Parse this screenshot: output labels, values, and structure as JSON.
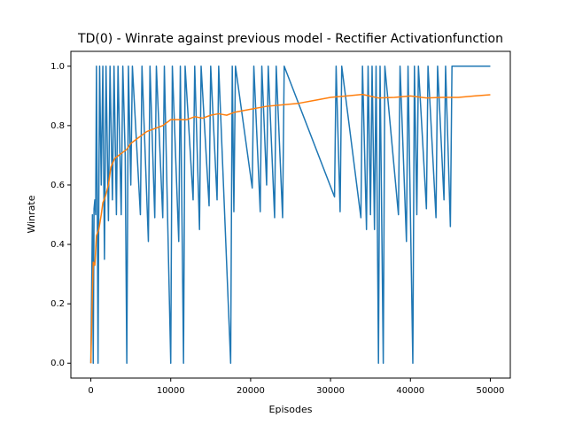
{
  "chart_data": {
    "type": "line",
    "title": "TD(0) - Winrate against previous model - Rectifier Activationfunction",
    "xlabel": "Episodes",
    "ylabel": "Winrate",
    "xlim": [
      -2500,
      52500
    ],
    "ylim": [
      -0.05,
      1.05
    ],
    "xticks": [
      0,
      10000,
      20000,
      30000,
      40000,
      50000
    ],
    "yticks": [
      {
        "value": 0,
        "label": "0.0"
      },
      0.2,
      0.4,
      0.6,
      0.8,
      {
        "value": 1,
        "label": "1.0"
      }
    ],
    "series": [
      {
        "color": "#1f77b4",
        "x": [
          0,
          200,
          300,
          400,
          500,
          600,
          700,
          800,
          900,
          1000,
          1100,
          1300,
          1500,
          1700,
          1900,
          2200,
          2400,
          2700,
          2900,
          3200,
          3400,
          3800,
          4000,
          4300,
          4500,
          4700,
          5000,
          5200,
          6200,
          6400,
          7200,
          7400,
          8000,
          8200,
          9000,
          9200,
          10000,
          10200,
          11000,
          11200,
          11600,
          11800,
          12800,
          13000,
          13600,
          13800,
          14800,
          15000,
          15800,
          16000,
          17500,
          17700,
          17900,
          18100,
          20200,
          20400,
          21200,
          21400,
          22000,
          22200,
          23000,
          23200,
          24000,
          24200,
          30500,
          30700,
          31200,
          31400,
          33800,
          34000,
          34500,
          34700,
          35000,
          35200,
          35500,
          35700,
          36000,
          36200,
          36600,
          36800,
          38500,
          38700,
          39500,
          39700,
          40300,
          40500,
          40800,
          41000,
          42000,
          42200,
          43200,
          43400,
          44200,
          44400,
          45000,
          45200,
          50000
        ],
        "values": [
          0,
          0.5,
          0,
          0.52,
          0.55,
          0.5,
          1,
          0.55,
          0,
          0.56,
          1,
          0.6,
          1,
          0.35,
          1,
          0.48,
          1,
          0.55,
          1,
          0.5,
          1,
          0.5,
          1,
          0.7,
          0,
          1,
          0.6,
          1,
          0.5,
          1,
          0.41,
          1,
          0.49,
          1,
          0.49,
          1,
          0,
          1,
          0.41,
          1,
          0,
          1,
          0.55,
          1,
          0.45,
          1,
          0.53,
          1,
          0.55,
          1,
          0,
          1,
          0.51,
          1,
          0.59,
          1,
          0.51,
          1,
          0.6,
          1,
          0.49,
          1,
          0.49,
          1,
          0.56,
          1,
          0.51,
          1,
          0.49,
          1,
          0.45,
          1,
          0.5,
          1,
          0.45,
          1,
          0,
          1,
          0,
          1,
          0.5,
          1,
          0.41,
          1,
          0,
          1,
          0.5,
          1,
          0.52,
          1,
          0.49,
          1,
          0.55,
          1,
          0.46,
          1,
          1
        ]
      },
      {
        "color": "#ff7f0e",
        "x": [
          0,
          200,
          300,
          500,
          700,
          1000,
          1300,
          1500,
          1800,
          2200,
          2500,
          3000,
          3500,
          4000,
          4500,
          5000,
          6000,
          7000,
          8000,
          9000,
          10000,
          11000,
          12000,
          13000,
          14000,
          15000,
          16000,
          17000,
          18000,
          20000,
          22000,
          24000,
          26000,
          28000,
          30000,
          32000,
          34000,
          36000,
          38000,
          40000,
          42000,
          44000,
          46000,
          48000,
          50000
        ],
        "values": [
          0,
          0.25,
          0.34,
          0.33,
          0.43,
          0.45,
          0.5,
          0.54,
          0.56,
          0.6,
          0.66,
          0.69,
          0.7,
          0.71,
          0.72,
          0.74,
          0.76,
          0.78,
          0.79,
          0.8,
          0.82,
          0.82,
          0.82,
          0.83,
          0.825,
          0.835,
          0.84,
          0.835,
          0.845,
          0.855,
          0.865,
          0.87,
          0.875,
          0.885,
          0.895,
          0.9,
          0.905,
          0.893,
          0.895,
          0.9,
          0.893,
          0.895,
          0.895,
          0.9,
          0.904
        ]
      }
    ]
  }
}
